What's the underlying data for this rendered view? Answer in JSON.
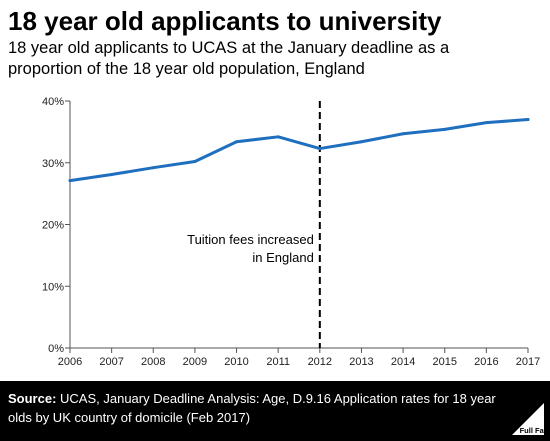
{
  "title": "18 year old applicants to university",
  "subtitle": "18 year old applicants to UCAS at the January deadline as a proportion of the 18 year old population, England",
  "chart_data": {
    "type": "line",
    "x": [
      "2006",
      "2007",
      "2008",
      "2009",
      "2010",
      "2011",
      "2012",
      "2013",
      "2014",
      "2015",
      "2016",
      "2017"
    ],
    "series": [
      {
        "values": [
          27.1,
          28.1,
          29.2,
          30.2,
          33.4,
          34.2,
          32.3,
          33.4,
          34.7,
          35.4,
          36.5,
          37.0
        ]
      }
    ],
    "y_ticks": [
      "0%",
      "10%",
      "20%",
      "30%",
      "40%"
    ],
    "ylim": [
      0,
      40
    ],
    "grid": false,
    "line_color": "#1f6fbf",
    "marker_x": "2012",
    "annotation": [
      "Tuition fees increased",
      "in England"
    ]
  },
  "footer": {
    "source_label": "Source:",
    "source_text": " UCAS,  January Deadline Analysis: Age, D.9.16 Application rates for 18 year olds by UK country of domicile (Feb 2017)",
    "logo_text": "Full Fact"
  }
}
